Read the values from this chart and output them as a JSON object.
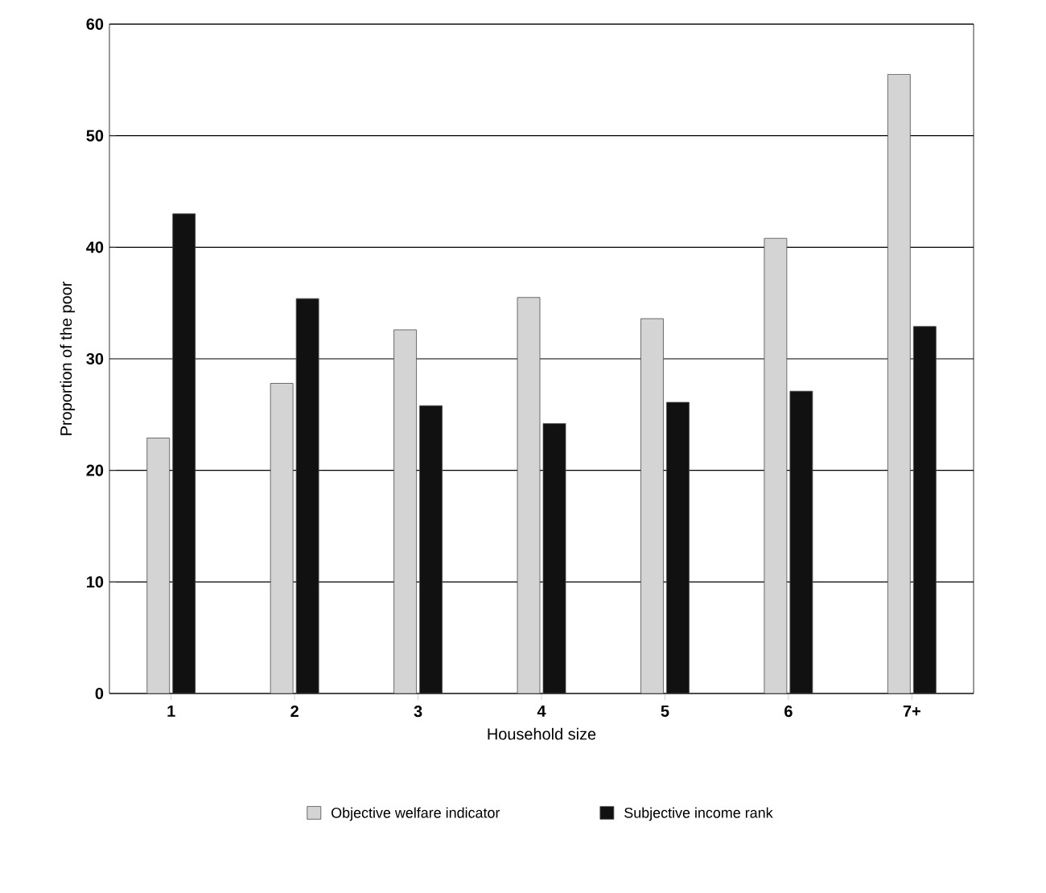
{
  "chart_data": {
    "type": "bar",
    "xlabel": "Household size",
    "ylabel": "Proportion of the poor",
    "categories": [
      "1",
      "2",
      "3",
      "4",
      "5",
      "6",
      "7+"
    ],
    "series": [
      {
        "name": "Objective welfare indicator",
        "color": "#d4d4d4",
        "values": [
          22.9,
          27.8,
          32.6,
          35.5,
          33.6,
          40.8,
          55.5
        ]
      },
      {
        "name": "Subjective income rank",
        "color": "#111111",
        "values": [
          43,
          35.4,
          25.8,
          24.2,
          26.1,
          27.1,
          32.9
        ]
      }
    ],
    "ylim": [
      0,
      60
    ],
    "yticks": [
      0,
      10,
      20,
      30,
      40,
      50,
      60
    ],
    "grid": "y",
    "legend": "bottom"
  }
}
